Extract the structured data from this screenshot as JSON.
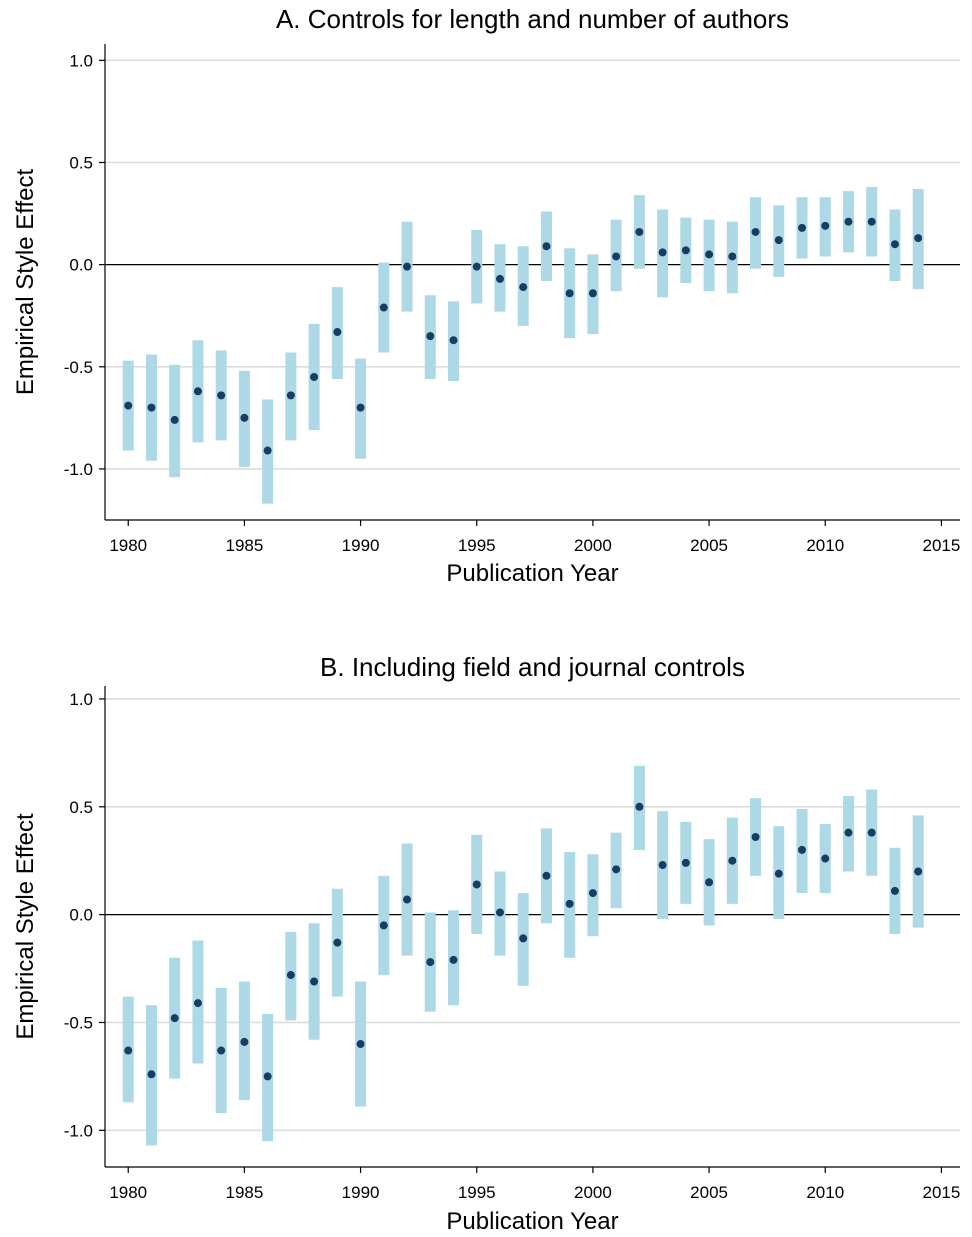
{
  "chart_data": [
    {
      "type": "errorbar",
      "title": "A. Controls for length and number of authors",
      "xlabel": "Publication Year",
      "ylabel": "Empirical Style Effect",
      "xlim": [
        1979,
        2015.8
      ],
      "ylim": [
        -1.25,
        1.08
      ],
      "xticks": [
        1980,
        1985,
        1990,
        1995,
        2000,
        2005,
        2010,
        2015
      ],
      "yticks": [
        -1.0,
        -0.5,
        0.0,
        0.5,
        1.0
      ],
      "ytick_labels": [
        "-1.0",
        "-0.5",
        "0.0",
        "0.5",
        "1.0"
      ],
      "grid": true,
      "reference_line_y": 0,
      "colors": {
        "interval": "#add8e6",
        "point": "#1a3b63",
        "grid": "#dcdcdc"
      },
      "x": [
        1980,
        1981,
        1982,
        1983,
        1984,
        1985,
        1986,
        1987,
        1988,
        1989,
        1990,
        1991,
        1992,
        1993,
        1994,
        1995,
        1996,
        1997,
        1998,
        1999,
        2000,
        2001,
        2002,
        2003,
        2004,
        2005,
        2006,
        2007,
        2008,
        2009,
        2010,
        2011,
        2012,
        2013,
        2014
      ],
      "estimate": [
        -0.69,
        -0.7,
        -0.76,
        -0.62,
        -0.64,
        -0.75,
        -0.91,
        -0.64,
        -0.55,
        -0.33,
        -0.7,
        -0.21,
        -0.01,
        -0.35,
        -0.37,
        -0.01,
        -0.07,
        -0.11,
        0.09,
        -0.14,
        -0.14,
        0.04,
        0.16,
        0.06,
        0.07,
        0.05,
        0.04,
        0.16,
        0.12,
        0.18,
        0.19,
        0.21,
        0.21,
        0.1,
        0.13
      ],
      "lower": [
        -0.91,
        -0.96,
        -1.04,
        -0.87,
        -0.86,
        -0.99,
        -1.17,
        -0.86,
        -0.81,
        -0.56,
        -0.95,
        -0.43,
        -0.23,
        -0.56,
        -0.57,
        -0.19,
        -0.23,
        -0.3,
        -0.08,
        -0.36,
        -0.34,
        -0.13,
        -0.02,
        -0.16,
        -0.09,
        -0.13,
        -0.14,
        -0.02,
        -0.06,
        0.03,
        0.04,
        0.06,
        0.04,
        -0.08,
        -0.12
      ],
      "upper": [
        -0.47,
        -0.44,
        -0.49,
        -0.37,
        -0.42,
        -0.52,
        -0.66,
        -0.43,
        -0.29,
        -0.11,
        -0.46,
        0.01,
        0.21,
        -0.15,
        -0.18,
        0.17,
        0.1,
        0.09,
        0.26,
        0.08,
        0.05,
        0.22,
        0.34,
        0.27,
        0.23,
        0.22,
        0.21,
        0.33,
        0.29,
        0.33,
        0.33,
        0.36,
        0.38,
        0.27,
        0.37
      ]
    },
    {
      "type": "errorbar",
      "title": "B. Including field and journal controls",
      "xlabel": "Publication Year",
      "ylabel": "Empirical Style Effect",
      "xlim": [
        1979,
        2015.8
      ],
      "ylim": [
        -1.17,
        1.06
      ],
      "xticks": [
        1980,
        1985,
        1990,
        1995,
        2000,
        2005,
        2010,
        2015
      ],
      "yticks": [
        -1.0,
        -0.5,
        0.0,
        0.5,
        1.0
      ],
      "ytick_labels": [
        "-1.0",
        "-0.5",
        "0.0",
        "0.5",
        "1.0"
      ],
      "grid": true,
      "reference_line_y": 0,
      "colors": {
        "interval": "#add8e6",
        "point": "#1a3b63",
        "grid": "#dcdcdc"
      },
      "x": [
        1980,
        1981,
        1982,
        1983,
        1984,
        1985,
        1986,
        1987,
        1988,
        1989,
        1990,
        1991,
        1992,
        1993,
        1994,
        1995,
        1996,
        1997,
        1998,
        1999,
        2000,
        2001,
        2002,
        2003,
        2004,
        2005,
        2006,
        2007,
        2008,
        2009,
        2010,
        2011,
        2012,
        2013,
        2014
      ],
      "estimate": [
        -0.63,
        -0.74,
        -0.48,
        -0.41,
        -0.63,
        -0.59,
        -0.75,
        -0.28,
        -0.31,
        -0.13,
        -0.6,
        -0.05,
        0.07,
        -0.22,
        -0.21,
        0.14,
        0.01,
        -0.11,
        0.18,
        0.05,
        0.1,
        0.21,
        0.5,
        0.23,
        0.24,
        0.15,
        0.25,
        0.36,
        0.19,
        0.3,
        0.26,
        0.38,
        0.38,
        0.11,
        0.2
      ],
      "lower": [
        -0.87,
        -1.07,
        -0.76,
        -0.69,
        -0.92,
        -0.86,
        -1.05,
        -0.49,
        -0.58,
        -0.38,
        -0.89,
        -0.28,
        -0.19,
        -0.45,
        -0.42,
        -0.09,
        -0.19,
        -0.33,
        -0.04,
        -0.2,
        -0.1,
        0.03,
        0.3,
        -0.02,
        0.05,
        -0.05,
        0.05,
        0.18,
        -0.02,
        0.1,
        0.1,
        0.2,
        0.18,
        -0.09,
        -0.06
      ],
      "upper": [
        -0.38,
        -0.42,
        -0.2,
        -0.12,
        -0.34,
        -0.31,
        -0.46,
        -0.08,
        -0.04,
        0.12,
        -0.31,
        0.18,
        0.33,
        0.01,
        0.02,
        0.37,
        0.2,
        0.1,
        0.4,
        0.29,
        0.28,
        0.38,
        0.69,
        0.48,
        0.43,
        0.35,
        0.45,
        0.54,
        0.41,
        0.49,
        0.42,
        0.55,
        0.58,
        0.31,
        0.46
      ]
    }
  ]
}
